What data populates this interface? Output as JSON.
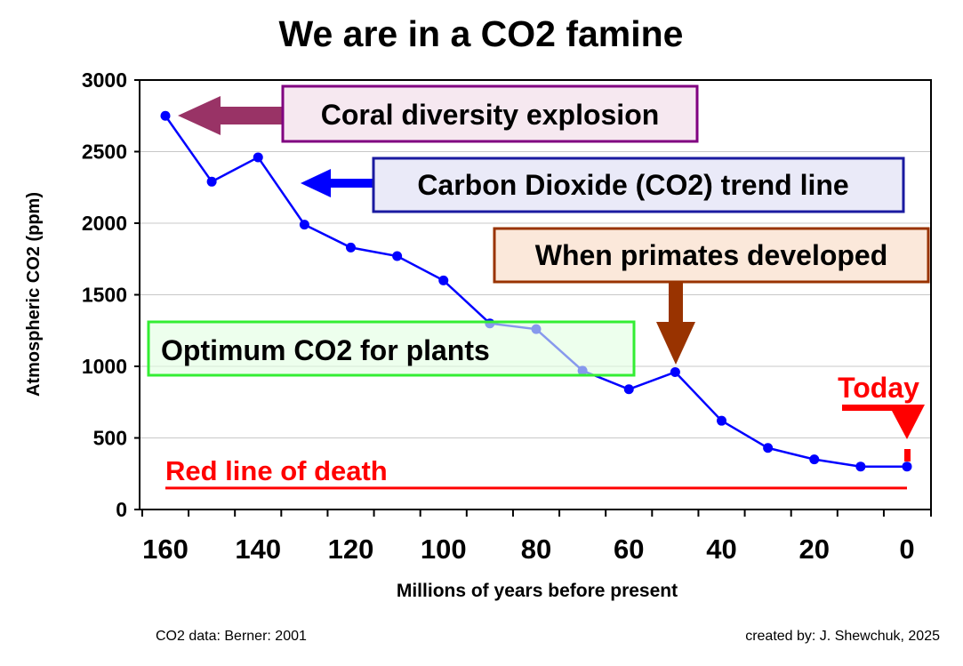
{
  "chart_data": {
    "type": "line",
    "title": "We are in a CO2 famine",
    "xlabel": "Millions of years before present",
    "ylabel": "Atmospheric CO2 (ppm)",
    "xlim": [
      160,
      0
    ],
    "ylim": [
      0,
      3000
    ],
    "xticks": [
      160,
      140,
      120,
      100,
      80,
      60,
      40,
      20,
      0
    ],
    "yticks": [
      0,
      500,
      1000,
      1500,
      2000,
      2500,
      3000
    ],
    "grid": "horizontal",
    "series": [
      {
        "name": "Carbon Dioxide (CO2) trend line",
        "color": "#0000ff",
        "x": [
          160,
          150,
          140,
          130,
          120,
          110,
          100,
          90,
          80,
          70,
          60,
          50,
          40,
          30,
          20,
          10,
          0
        ],
        "y": [
          2750,
          2290,
          2460,
          1990,
          1830,
          1770,
          1600,
          1300,
          1260,
          970,
          840,
          960,
          620,
          430,
          350,
          300,
          300
        ]
      }
    ],
    "reference_line": {
      "label": "Red line of death",
      "y": 150,
      "color": "#ff0000"
    },
    "annotations": [
      {
        "text": "Coral diversity explosion",
        "points_to_x": 160,
        "color": "#993366"
      },
      {
        "text": "Carbon Dioxide (CO2) trend line",
        "color": "#0000ff"
      },
      {
        "text": "When primates developed",
        "points_to_x": 50,
        "color": "#993300"
      },
      {
        "text": "Optimum CO2 for plants",
        "color": "#33ee33"
      },
      {
        "text": "Today",
        "points_to_x": 0,
        "color": "#ff0000"
      }
    ],
    "source": "CO2 data: Berner: 2001",
    "credit": "created by: J. Shewchuk, 2025"
  }
}
